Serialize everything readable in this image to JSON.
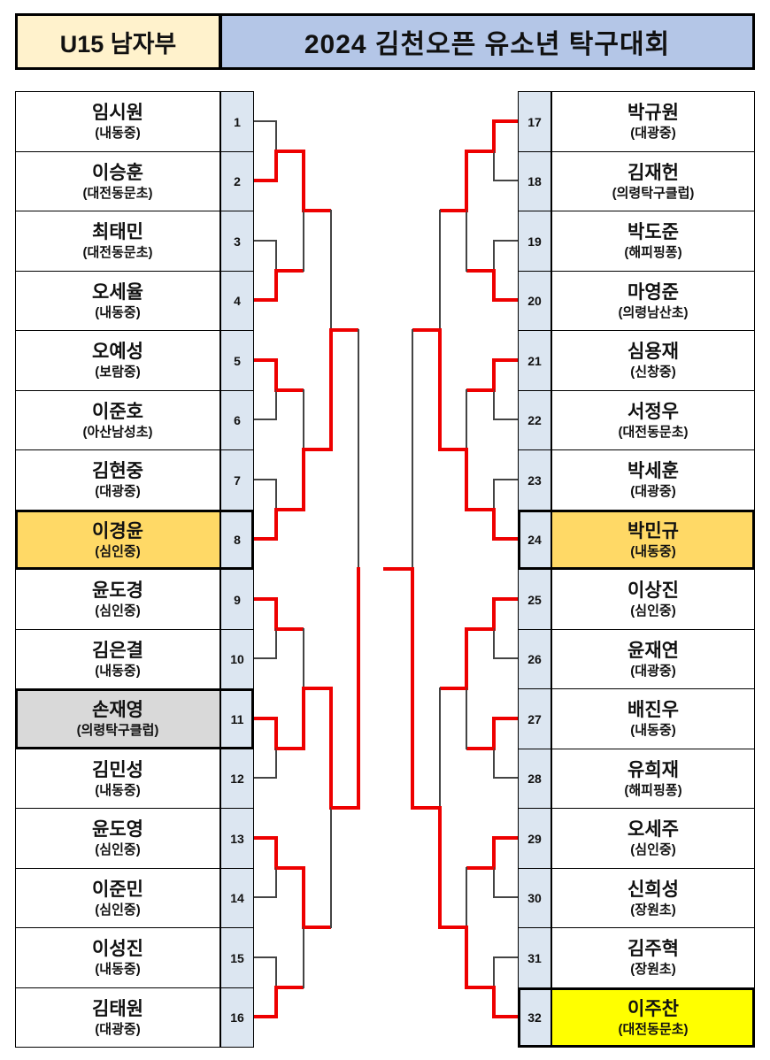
{
  "header": {
    "division": "U15 남자부",
    "title": "2024 김천오픈 유소년 탁구대회"
  },
  "players": [
    {
      "no": 1,
      "name": "임시원",
      "school": "(내동중)",
      "highlight": null
    },
    {
      "no": 2,
      "name": "이승훈",
      "school": "(대전동문초)",
      "highlight": null
    },
    {
      "no": 3,
      "name": "최태민",
      "school": "(대전동문초)",
      "highlight": null
    },
    {
      "no": 4,
      "name": "오세율",
      "school": "(내동중)",
      "highlight": null
    },
    {
      "no": 5,
      "name": "오예성",
      "school": "(보람중)",
      "highlight": null
    },
    {
      "no": 6,
      "name": "이준호",
      "school": "(아산남성초)",
      "highlight": null
    },
    {
      "no": 7,
      "name": "김현중",
      "school": "(대광중)",
      "highlight": null
    },
    {
      "no": 8,
      "name": "이경윤",
      "school": "(심인중)",
      "highlight": "semifinalist"
    },
    {
      "no": 9,
      "name": "윤도경",
      "school": "(심인중)",
      "highlight": null
    },
    {
      "no": 10,
      "name": "김은결",
      "school": "(내동중)",
      "highlight": null
    },
    {
      "no": 11,
      "name": "손재영",
      "school": "(의령탁구클럽)",
      "highlight": "runner_up"
    },
    {
      "no": 12,
      "name": "김민성",
      "school": "(내동중)",
      "highlight": null
    },
    {
      "no": 13,
      "name": "윤도영",
      "school": "(심인중)",
      "highlight": null
    },
    {
      "no": 14,
      "name": "이준민",
      "school": "(심인중)",
      "highlight": null
    },
    {
      "no": 15,
      "name": "이성진",
      "school": "(내동중)",
      "highlight": null
    },
    {
      "no": 16,
      "name": "김태원",
      "school": "(대광중)",
      "highlight": null
    },
    {
      "no": 17,
      "name": "박규원",
      "school": "(대광중)",
      "highlight": null
    },
    {
      "no": 18,
      "name": "김재헌",
      "school": "(의령탁구클럽)",
      "highlight": null
    },
    {
      "no": 19,
      "name": "박도준",
      "school": "(해피핑퐁)",
      "highlight": null
    },
    {
      "no": 20,
      "name": "마영준",
      "school": "(의령남산초)",
      "highlight": null
    },
    {
      "no": 21,
      "name": "심용재",
      "school": "(신창중)",
      "highlight": null
    },
    {
      "no": 22,
      "name": "서정우",
      "school": "(대전동문초)",
      "highlight": null
    },
    {
      "no": 23,
      "name": "박세훈",
      "school": "(대광중)",
      "highlight": null
    },
    {
      "no": 24,
      "name": "박민규",
      "school": "(내동중)",
      "highlight": "semifinalist"
    },
    {
      "no": 25,
      "name": "이상진",
      "school": "(심인중)",
      "highlight": null
    },
    {
      "no": 26,
      "name": "윤재연",
      "school": "(대광중)",
      "highlight": null
    },
    {
      "no": 27,
      "name": "배진우",
      "school": "(내동중)",
      "highlight": null
    },
    {
      "no": 28,
      "name": "유희재",
      "school": "(해피핑퐁)",
      "highlight": null
    },
    {
      "no": 29,
      "name": "오세주",
      "school": "(심인중)",
      "highlight": null
    },
    {
      "no": 30,
      "name": "신희성",
      "school": "(장원초)",
      "highlight": null
    },
    {
      "no": 31,
      "name": "김주혁",
      "school": "(장원초)",
      "highlight": null
    },
    {
      "no": 32,
      "name": "이주찬",
      "school": "(대전동문초)",
      "highlight": "champion"
    }
  ],
  "results": {
    "round_of_32_winners": [
      2,
      4,
      5,
      8,
      9,
      11,
      13,
      16,
      17,
      20,
      21,
      24,
      25,
      27,
      29,
      32
    ],
    "round_of_16_winners": [
      2,
      8,
      11,
      13,
      17,
      24,
      25,
      32
    ],
    "quarterfinal_winners": [
      8,
      11,
      24,
      32
    ],
    "semifinal_winners": [
      11,
      32
    ],
    "champion": 32
  },
  "colors": {
    "division_header_bg": "#FFF2CC",
    "title_header_bg": "#B4C6E7",
    "seed_column_bg": "#DCE6F1",
    "semifinalist_bg": "#FFD966",
    "runner_up_bg": "#D9D9D9",
    "champion_bg": "#FFFF00",
    "winner_path": "#EE0000",
    "bracket_line": "#444444"
  }
}
